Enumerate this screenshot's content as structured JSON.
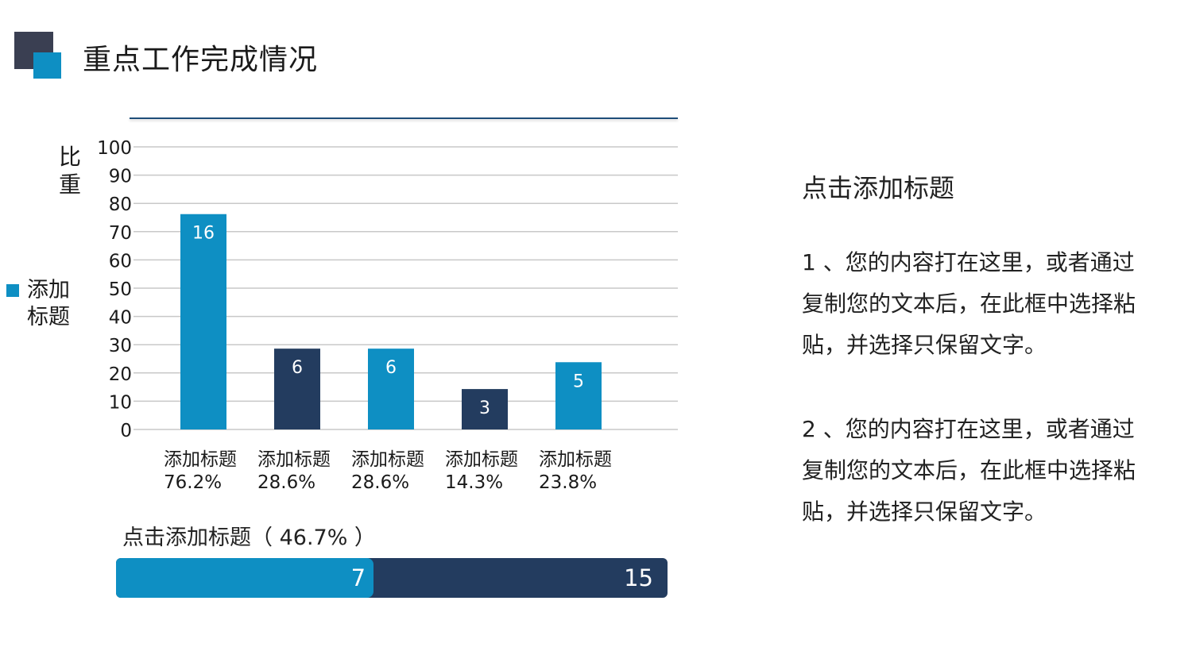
{
  "header": {
    "title": "重点工作完成情况"
  },
  "colors": {
    "accent_blue": "#0e8fc3",
    "accent_navy": "#233c5f",
    "logo_dark": "#3a3f52"
  },
  "icons": {
    "logo": "overlapping-squares-icon",
    "legend": "legend-swatch-icon"
  },
  "chart_data": {
    "type": "bar",
    "categories": [
      "添加标题\n76.2%",
      "添加标题\n28.6%",
      "添加标题\n28.6%",
      "添加标题\n14.3%",
      "添加标题\n23.8%"
    ],
    "category_titles": [
      "添加标题",
      "添加标题",
      "添加标题",
      "添加标题",
      "添加标题"
    ],
    "category_subtitles": [
      "76.2%",
      "28.6%",
      "28.6%",
      "14.3%",
      "23.8%"
    ],
    "values": [
      76.2,
      28.6,
      28.6,
      14.3,
      23.8
    ],
    "data_labels": [
      "16",
      "6",
      "6",
      "3",
      "5"
    ],
    "bar_colors": [
      "#0e8fc3",
      "#233c5f",
      "#0e8fc3",
      "#233c5f",
      "#0e8fc3"
    ],
    "series": [
      {
        "name": "添加标题",
        "values": [
          76.2,
          28.6,
          28.6,
          14.3,
          23.8
        ]
      }
    ],
    "legend_label": "添加标题",
    "ylabel": "比重",
    "ylim": [
      0,
      100
    ],
    "yticks": [
      0,
      10,
      20,
      30,
      40,
      50,
      60,
      70,
      80,
      90,
      100
    ],
    "grid": true,
    "legend_position": "left"
  },
  "progress": {
    "title": "点击添加标题（ 46.7% ）",
    "percent": 46.7,
    "value_a": "7",
    "value_b": "15"
  },
  "side_panel": {
    "heading": "点击添加标题",
    "paragraph_1": "1 、您的内容打在这里，或者通过复制您的文本后，在此框中选择粘贴，并选择只保留文字。",
    "paragraph_2": "2 、您的内容打在这里，或者通过复制您的文本后，在此框中选择粘贴，并选择只保留文字。"
  }
}
